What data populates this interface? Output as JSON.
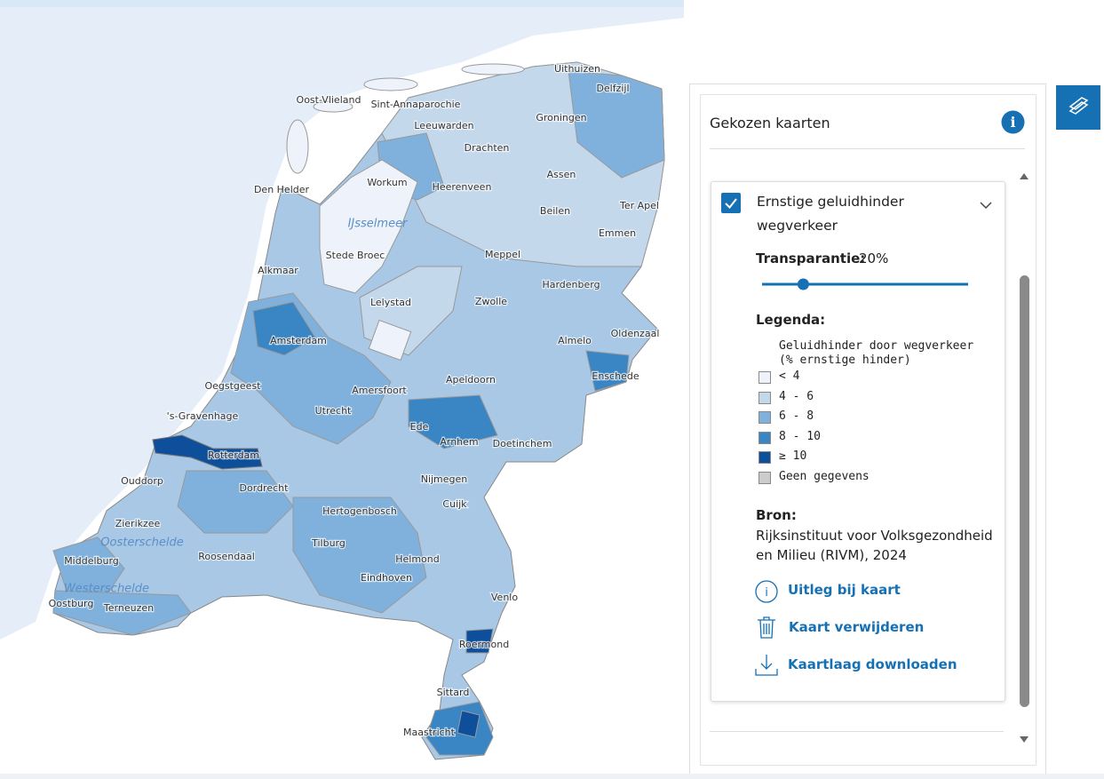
{
  "map": {
    "places": [
      "Oost-Vlieland",
      "Sint-Annaparochie",
      "Uithuizen",
      "Delfzijl",
      "Leeuwarden",
      "Groningen",
      "Drachten",
      "Den Helder",
      "Workum",
      "Heerenveen",
      "Assen",
      "Ter Apel",
      "Beilen",
      "Emmen",
      "Stede Broec",
      "Meppel",
      "Hardenberg",
      "Alkmaar",
      "Lelystad",
      "Zwolle",
      "Almelo",
      "Oldenzaal",
      "Amsterdam",
      "Enschede",
      "Apeldoorn",
      "Amersfoort",
      "Oegstgeest",
      "Utrecht",
      "'s-Gravenhage",
      "Ede",
      "Arnhem",
      "Doetinchem",
      "Rotterdam",
      "Nijmegen",
      "Dordrecht",
      "Hertogenbosch",
      "Cuijk",
      "Zierikzee",
      "Tilburg",
      "Middelburg",
      "Roosendaal",
      "Eindhoven",
      "Venlo",
      "Oostburg",
      "Terneuzen",
      "Roermond",
      "Sittard",
      "Maastricht",
      "Ouddorp",
      "Helmond"
    ],
    "waters": [
      "IJsselmeer",
      "Oosterschelde",
      "Westerschelde"
    ]
  },
  "panel": {
    "title": "Gekozen kaarten",
    "layer": {
      "name_line1": "Ernstige geluidhinder",
      "name_line2": "wegverkeer",
      "transparency_label": "Transparantie:",
      "transparency": {
        "value": 20,
        "label": "20%"
      },
      "legend": {
        "title": "Legenda:",
        "subtitle_line1": "Geluidhinder door wegverkeer",
        "subtitle_line2": "(% ernstige hinder)",
        "items": [
          {
            "label": "< 4",
            "color": "#eef3fb"
          },
          {
            "label": "4 - 6",
            "color": "#c4d8ec"
          },
          {
            "label": "6 - 8",
            "color": "#7fb1dc"
          },
          {
            "label": "8 - 10",
            "color": "#3a86c4"
          },
          {
            "label": "≥ 10",
            "color": "#0d4f9a"
          },
          {
            "label": "Geen gegevens",
            "color": "#cccccc"
          }
        ]
      },
      "source_label": "Bron:",
      "source_line1": "Rijksinstituut voor Volksgezondheid",
      "source_line2": "en Milieu (RIVM), 2024",
      "actions": [
        "Uitleg bij kaart",
        "Kaart verwijderen",
        "Kaartlaag downloaden"
      ]
    }
  }
}
